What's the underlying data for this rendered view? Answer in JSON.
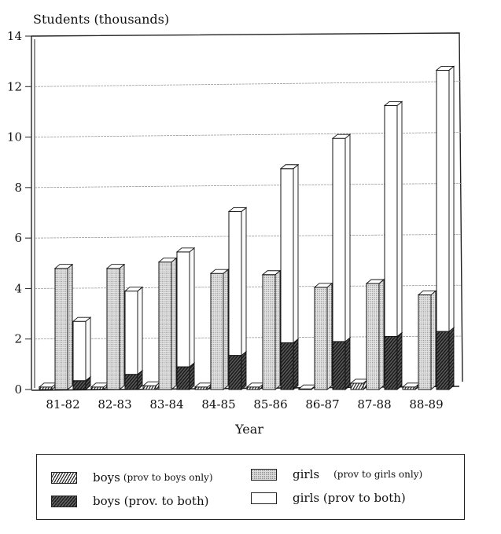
{
  "chart_data": {
    "type": "bar",
    "title": "",
    "ylabel": "Students (thousands)",
    "xlabel": "Year",
    "ylim": [
      0,
      14
    ],
    "yticks": [
      0,
      2,
      4,
      6,
      8,
      10,
      12,
      14
    ],
    "grid": true,
    "stacked_note": "girls (prov to both) bar is stacked on top of boys (prov. to both)",
    "categories": [
      "81-82",
      "82-83",
      "83-84",
      "84-85",
      "85-86",
      "86-87",
      "87-88",
      "88-89"
    ],
    "series": [
      {
        "name": "boys (prov to boys only)",
        "values": [
          0.1,
          0.1,
          0.15,
          0.1,
          0.1,
          0.0,
          0.25,
          0.1
        ]
      },
      {
        "name": "girls (prov to girls only)",
        "values": [
          4.8,
          4.8,
          5.05,
          4.6,
          4.55,
          4.05,
          4.2,
          3.75
        ]
      },
      {
        "name": "boys (prov. to both)",
        "values": [
          0.35,
          0.6,
          0.9,
          1.35,
          1.85,
          1.9,
          2.1,
          2.3
        ]
      },
      {
        "name": "girls (prov to both)",
        "values": [
          2.35,
          3.3,
          4.55,
          5.7,
          6.9,
          8.05,
          9.15,
          10.35
        ]
      }
    ],
    "legend_position": "bottom"
  },
  "legend": {
    "items": [
      {
        "main": "boys",
        "small": "(prov to boys only)"
      },
      {
        "main": "boys (prov. to both)",
        "small": ""
      },
      {
        "main": "girls",
        "small": "(prov to girls only)"
      },
      {
        "main": "girls (prov to both)",
        "small": ""
      }
    ]
  }
}
